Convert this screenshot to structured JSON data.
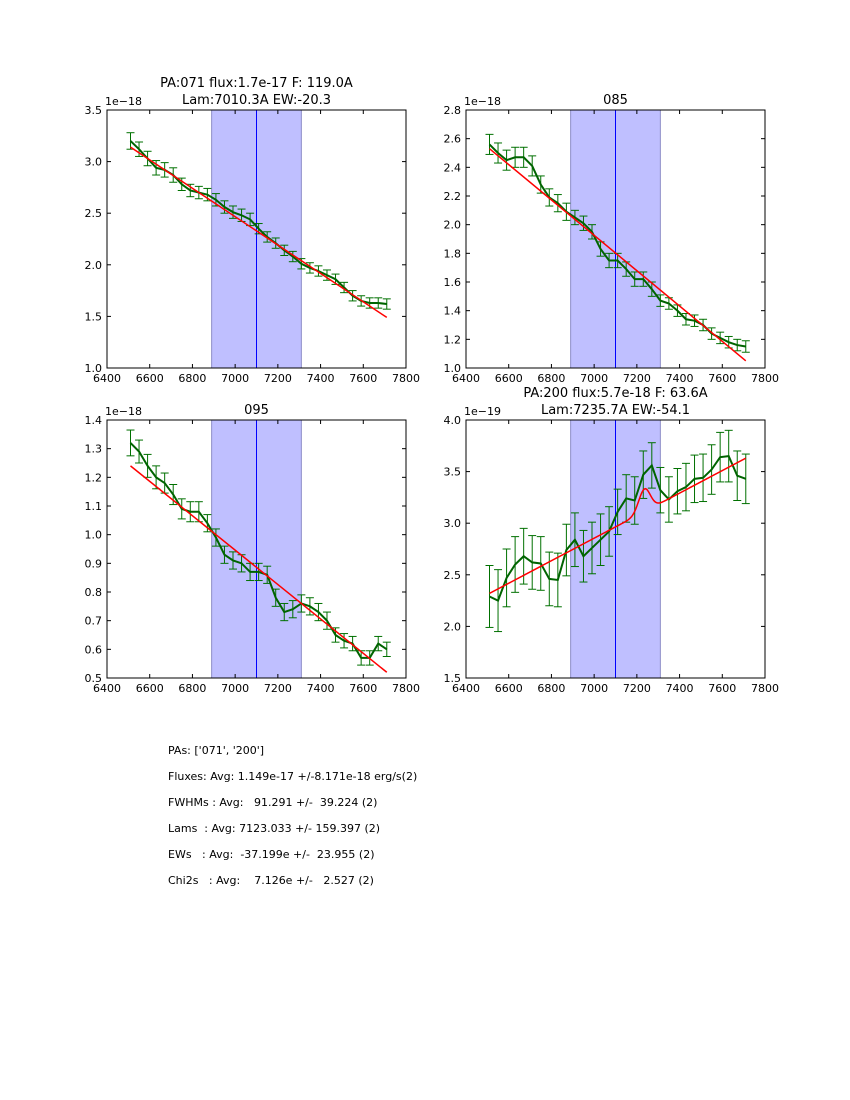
{
  "chart_data": [
    {
      "type": "line",
      "title_lines": [
        "PA:071 flux:1.7e-17 F: 119.0A",
        "Lam:7010.3A EW:-20.3"
      ],
      "offset_label": "1e−18",
      "xlabel": "",
      "ylabel": "",
      "xlim": [
        6400,
        7800
      ],
      "ylim": [
        1.0,
        3.5
      ],
      "xticks": [
        "6400",
        "6600",
        "6800",
        "7000",
        "7200",
        "7400",
        "7600",
        "7800"
      ],
      "yticks": [
        "1.0",
        "1.5",
        "2.0",
        "2.5",
        "3.0",
        "3.5"
      ],
      "shaded_band": [
        6890,
        7310
      ],
      "center_line": 7100,
      "x": [
        6510,
        6550,
        6590,
        6630,
        6670,
        6710,
        6750,
        6790,
        6830,
        6870,
        6910,
        6950,
        6990,
        7030,
        7070,
        7110,
        7150,
        7190,
        7230,
        7270,
        7310,
        7350,
        7390,
        7430,
        7470,
        7510,
        7550,
        7590,
        7630,
        7670,
        7710
      ],
      "series": [
        {
          "name": "data",
          "color": "#006400",
          "values": [
            3.2,
            3.12,
            3.03,
            2.94,
            2.92,
            2.87,
            2.78,
            2.72,
            2.7,
            2.68,
            2.63,
            2.56,
            2.51,
            2.48,
            2.44,
            2.35,
            2.27,
            2.21,
            2.14,
            2.08,
            2.01,
            1.97,
            1.94,
            1.9,
            1.86,
            1.78,
            1.7,
            1.65,
            1.63,
            1.63,
            1.62
          ],
          "errors": [
            0.08,
            0.07,
            0.07,
            0.07,
            0.07,
            0.07,
            0.06,
            0.06,
            0.06,
            0.06,
            0.06,
            0.06,
            0.06,
            0.06,
            0.06,
            0.05,
            0.05,
            0.05,
            0.05,
            0.05,
            0.05,
            0.05,
            0.05,
            0.05,
            0.05,
            0.05,
            0.05,
            0.05,
            0.05,
            0.05,
            0.05
          ]
        },
        {
          "name": "fit",
          "color": "#ff0000",
          "values_start_end": [
            3.14,
            1.49
          ]
        }
      ]
    },
    {
      "type": "line",
      "title_lines": [
        "085"
      ],
      "offset_label": "1e−18",
      "xlabel": "",
      "ylabel": "",
      "xlim": [
        6400,
        7800
      ],
      "ylim": [
        1.0,
        2.8
      ],
      "xticks": [
        "6400",
        "6600",
        "6800",
        "7000",
        "7200",
        "7400",
        "7600",
        "7800"
      ],
      "yticks": [
        "1.0",
        "1.2",
        "1.4",
        "1.6",
        "1.8",
        "2.0",
        "2.2",
        "2.4",
        "2.6",
        "2.8"
      ],
      "shaded_band": [
        6890,
        7310
      ],
      "center_line": 7100,
      "x": [
        6510,
        6550,
        6590,
        6630,
        6670,
        6710,
        6750,
        6790,
        6830,
        6870,
        6910,
        6950,
        6990,
        7030,
        7070,
        7110,
        7150,
        7190,
        7230,
        7270,
        7310,
        7350,
        7390,
        7430,
        7470,
        7510,
        7550,
        7590,
        7630,
        7670,
        7710
      ],
      "series": [
        {
          "name": "data",
          "color": "#006400",
          "values": [
            2.56,
            2.5,
            2.45,
            2.47,
            2.47,
            2.41,
            2.28,
            2.19,
            2.15,
            2.09,
            2.05,
            2.01,
            1.95,
            1.83,
            1.75,
            1.75,
            1.69,
            1.62,
            1.62,
            1.55,
            1.47,
            1.45,
            1.4,
            1.34,
            1.33,
            1.3,
            1.24,
            1.21,
            1.18,
            1.16,
            1.15
          ],
          "errors": [
            0.07,
            0.07,
            0.07,
            0.07,
            0.07,
            0.07,
            0.06,
            0.06,
            0.06,
            0.06,
            0.05,
            0.05,
            0.05,
            0.05,
            0.05,
            0.05,
            0.05,
            0.05,
            0.05,
            0.05,
            0.04,
            0.04,
            0.04,
            0.04,
            0.04,
            0.04,
            0.04,
            0.04,
            0.04,
            0.04,
            0.04
          ]
        },
        {
          "name": "fit",
          "color": "#ff0000",
          "values_start_end": [
            2.53,
            1.05
          ]
        }
      ]
    },
    {
      "type": "line",
      "title_lines": [
        "095"
      ],
      "offset_label": "1e−18",
      "xlabel": "",
      "ylabel": "",
      "xlim": [
        6400,
        7800
      ],
      "ylim": [
        0.5,
        1.4
      ],
      "xticks": [
        "6400",
        "6600",
        "6800",
        "7000",
        "7200",
        "7400",
        "7600",
        "7800"
      ],
      "yticks": [
        "0.5",
        "0.6",
        "0.7",
        "0.8",
        "0.9",
        "1.0",
        "1.1",
        "1.2",
        "1.3",
        "1.4"
      ],
      "shaded_band": [
        6890,
        7310
      ],
      "center_line": 7100,
      "x": [
        6510,
        6550,
        6590,
        6630,
        6670,
        6710,
        6750,
        6790,
        6830,
        6870,
        6910,
        6950,
        6990,
        7030,
        7070,
        7110,
        7150,
        7190,
        7230,
        7270,
        7310,
        7350,
        7390,
        7430,
        7470,
        7510,
        7550,
        7590,
        7630,
        7670,
        7710
      ],
      "series": [
        {
          "name": "data",
          "color": "#006400",
          "values": [
            1.32,
            1.29,
            1.24,
            1.2,
            1.18,
            1.14,
            1.09,
            1.08,
            1.08,
            1.04,
            0.99,
            0.93,
            0.91,
            0.9,
            0.87,
            0.87,
            0.86,
            0.78,
            0.73,
            0.74,
            0.76,
            0.75,
            0.73,
            0.7,
            0.65,
            0.63,
            0.62,
            0.57,
            0.57,
            0.62,
            0.6
          ],
          "errors": [
            0.045,
            0.04,
            0.04,
            0.04,
            0.035,
            0.035,
            0.035,
            0.035,
            0.035,
            0.03,
            0.03,
            0.03,
            0.03,
            0.03,
            0.03,
            0.03,
            0.03,
            0.03,
            0.03,
            0.03,
            0.03,
            0.03,
            0.03,
            0.03,
            0.025,
            0.025,
            0.025,
            0.025,
            0.025,
            0.025,
            0.025
          ]
        },
        {
          "name": "fit",
          "color": "#ff0000",
          "values_start_end": [
            1.24,
            0.52
          ]
        }
      ]
    },
    {
      "type": "line",
      "title_lines": [
        "PA:200 flux:5.7e-18 F: 63.6A",
        "Lam:7235.7A EW:-54.1"
      ],
      "offset_label": "1e−19",
      "xlabel": "",
      "ylabel": "",
      "xlim": [
        6400,
        7800
      ],
      "ylim": [
        1.5,
        4.0
      ],
      "xticks": [
        "6400",
        "6600",
        "6800",
        "7000",
        "7200",
        "7400",
        "7600",
        "7800"
      ],
      "yticks": [
        "1.5",
        "2.0",
        "2.5",
        "3.0",
        "3.5",
        "4.0"
      ],
      "shaded_band": [
        6890,
        7310
      ],
      "center_line": 7100,
      "x": [
        6510,
        6550,
        6590,
        6630,
        6670,
        6710,
        6750,
        6790,
        6830,
        6870,
        6910,
        6950,
        6990,
        7030,
        7070,
        7110,
        7150,
        7190,
        7230,
        7270,
        7310,
        7350,
        7390,
        7430,
        7470,
        7510,
        7550,
        7590,
        7630,
        7670,
        7710
      ],
      "series": [
        {
          "name": "data",
          "color": "#006400",
          "values": [
            2.29,
            2.25,
            2.47,
            2.6,
            2.68,
            2.62,
            2.61,
            2.46,
            2.45,
            2.74,
            2.84,
            2.68,
            2.76,
            2.84,
            2.92,
            3.11,
            3.24,
            3.22,
            3.47,
            3.56,
            3.32,
            3.23,
            3.31,
            3.35,
            3.43,
            3.44,
            3.52,
            3.64,
            3.65,
            3.46,
            3.43
          ],
          "errors": [
            0.3,
            0.3,
            0.28,
            0.27,
            0.27,
            0.26,
            0.26,
            0.26,
            0.26,
            0.25,
            0.26,
            0.25,
            0.25,
            0.25,
            0.24,
            0.22,
            0.23,
            0.23,
            0.23,
            0.22,
            0.22,
            0.22,
            0.22,
            0.23,
            0.23,
            0.23,
            0.24,
            0.24,
            0.25,
            0.24,
            0.24
          ]
        },
        {
          "name": "fit",
          "color": "#ff0000",
          "linear_start_end": [
            2.32,
            3.63
          ],
          "gaussian": {
            "center": 7235.7,
            "fwhm": 63.6,
            "amplitude": 0.22
          }
        }
      ]
    }
  ],
  "stats": {
    "pas": "PAs: ['071', '200']",
    "fluxes": "Fluxes: Avg: 1.149e-17 +/-8.171e-18 erg/s(2)",
    "fwhms": "FWHMs : Avg:   91.291 +/-  39.224 (2)",
    "lams": "Lams  : Avg: 7123.033 +/- 159.397 (2)",
    "ews": "EWs   : Avg:  -37.199e +/-  23.955 (2)",
    "chi2s": "Chi2s   : Avg:    7.126e +/-   2.527 (2)"
  },
  "colors": {
    "band_fill": "#bfbfff",
    "band_edge": "#8c8cc8",
    "center_line": "#0000ff",
    "data": "#006400",
    "errorbar": "#007000",
    "fit": "#ff0000"
  }
}
